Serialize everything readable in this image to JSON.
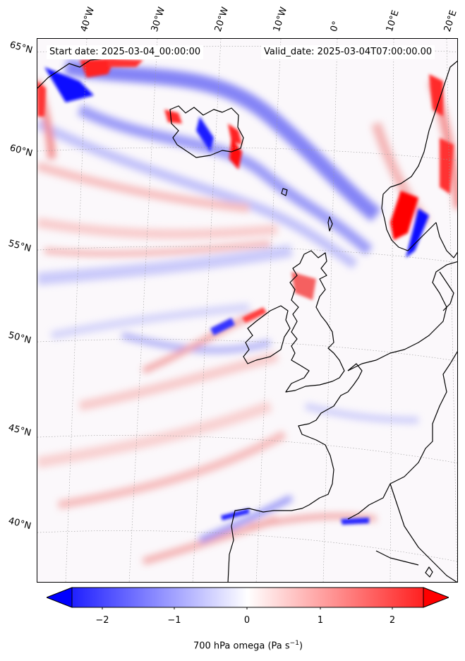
{
  "header": {
    "start_date": "Start date: 2025-03-04_00:00:00",
    "valid_date": "Valid_date: 2025-03-04T07:00:00.00"
  },
  "lon_labels": [
    "40°W",
    "30°W",
    "20°W",
    "10°W",
    "0°",
    "10°E",
    "20°E"
  ],
  "lat_labels": [
    "65°N",
    "60°N",
    "55°N",
    "50°N",
    "45°N",
    "40°N"
  ],
  "colorbar": {
    "label": "700 hPa omega (Pa s",
    "label_exp": "−1",
    "label_close": ")",
    "ticks": [
      "−2",
      "−1",
      "0",
      "1",
      "2"
    ],
    "range": [
      -2.6,
      2.6
    ],
    "low_color": "#0000ff",
    "mid_color": "#ffffff",
    "high_color": "#ff0000"
  },
  "map": {
    "field": "700 hPa omega",
    "units": "Pa s^-1",
    "coastline_color": "#000000",
    "gridline_style": "dotted"
  }
}
